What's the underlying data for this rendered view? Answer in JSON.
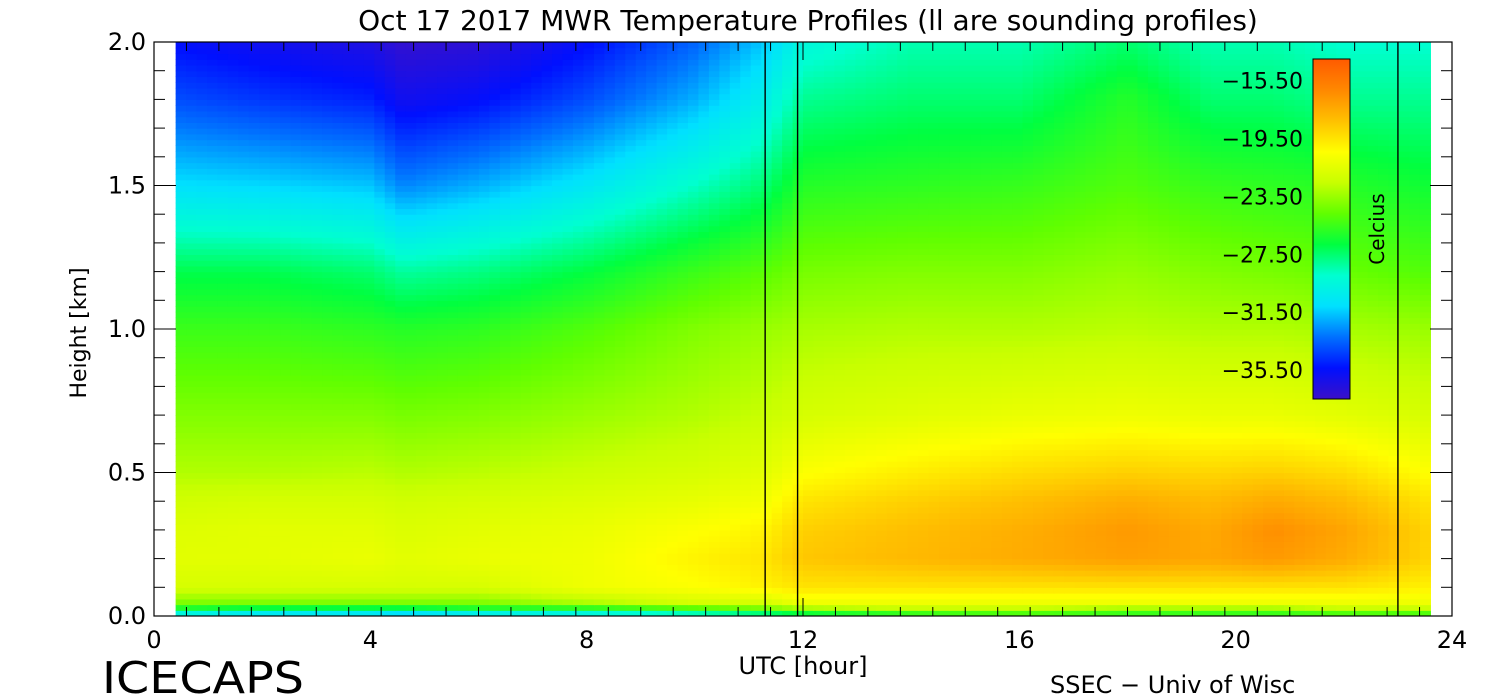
{
  "chart_data": {
    "type": "heatmap",
    "title": "Oct 17 2017 MWR Temperature Profiles (ll are sounding profiles)",
    "xlabel": "UTC [hour]",
    "ylabel": "Height [km]",
    "xlim": [
      0,
      24
    ],
    "ylim": [
      0,
      2.0
    ],
    "x_ticks": [
      0,
      4,
      8,
      12,
      16,
      20,
      24
    ],
    "x_tick_labels": [
      "0",
      "4",
      "8",
      "12",
      "16",
      "20",
      "24"
    ],
    "y_ticks": [
      0.0,
      0.5,
      1.0,
      1.5,
      2.0
    ],
    "y_tick_labels": [
      "0.0",
      "0.5",
      "1.0",
      "1.5",
      "2.0"
    ],
    "colorbar": {
      "label": "Celcius",
      "min": -37.5,
      "max": -14.0,
      "tick_values": [
        -15.5,
        -19.5,
        -23.5,
        -27.5,
        -31.5,
        -35.5
      ],
      "tick_labels": [
        "−15.50",
        "−19.50",
        "−23.50",
        "−27.50",
        "−31.50",
        "−35.50"
      ],
      "colormap": [
        "#3a10c8",
        "#0010ff",
        "#0070ff",
        "#00e0ff",
        "#00ffd0",
        "#00ff40",
        "#60ff00",
        "#c8ff00",
        "#ffff00",
        "#ffc000",
        "#ff8800",
        "#ff5a00"
      ]
    },
    "data_start_hour": 0.4,
    "data_end_hour": 23.6,
    "sounding_times_hour": [
      11.3,
      11.9,
      23.0
    ],
    "heights_km": [
      0.0,
      0.02,
      0.05,
      0.1,
      0.2,
      0.3,
      0.4,
      0.5,
      0.7,
      1.0,
      1.2,
      1.5,
      1.8,
      2.0
    ],
    "times_hour": [
      0.4,
      2,
      4,
      4.6,
      6,
      8,
      10,
      11.3,
      12,
      14,
      16,
      18,
      19.5,
      20.7,
      22,
      23.6
    ],
    "temperature_c": [
      [
        -32,
        -33,
        -33,
        -34,
        -33,
        -32,
        -31,
        -30,
        -29,
        -28,
        -27,
        -27,
        -27,
        -27,
        -27,
        -27
      ],
      [
        -27,
        -28,
        -28,
        -28,
        -27,
        -27,
        -26,
        -25,
        -24,
        -23,
        -23,
        -24,
        -24,
        -24,
        -23,
        -23
      ],
      [
        -24,
        -24,
        -24,
        -24,
        -24,
        -23,
        -22,
        -22,
        -21,
        -21,
        -21,
        -21,
        -21,
        -21,
        -21,
        -21
      ],
      [
        -22,
        -22,
        -22,
        -22,
        -22,
        -21,
        -20.5,
        -20,
        -19.5,
        -19.5,
        -19.5,
        -19.5,
        -19.5,
        -19.5,
        -19.5,
        -20
      ],
      [
        -21.5,
        -21.5,
        -21.2,
        -21.5,
        -21.2,
        -21,
        -20,
        -19.5,
        -18.5,
        -18,
        -17.5,
        -17,
        -17.3,
        -16.8,
        -17.5,
        -19
      ],
      [
        -21.7,
        -21.5,
        -21.5,
        -21.8,
        -21.5,
        -21.2,
        -20.5,
        -20,
        -18.8,
        -18.2,
        -17.6,
        -16.8,
        -17.4,
        -16.4,
        -17.2,
        -19
      ],
      [
        -22.2,
        -22,
        -22,
        -22.2,
        -22,
        -21.7,
        -21.3,
        -20.8,
        -19.5,
        -18.8,
        -18.2,
        -17.5,
        -18,
        -17.4,
        -18,
        -19.5
      ],
      [
        -23,
        -23,
        -22.8,
        -23,
        -22.8,
        -22.4,
        -22,
        -21.5,
        -20.5,
        -19.8,
        -19.2,
        -18.8,
        -19,
        -18.8,
        -19.2,
        -20.5
      ],
      [
        -24,
        -24,
        -24,
        -24.2,
        -24,
        -23.5,
        -23,
        -22.5,
        -22,
        -21.6,
        -21.2,
        -21,
        -21.2,
        -21.2,
        -21.5,
        -22
      ],
      [
        -25.5,
        -25.5,
        -25.8,
        -26,
        -25.8,
        -25,
        -24,
        -23.5,
        -23.2,
        -23,
        -23,
        -22.8,
        -23,
        -23,
        -23.2,
        -23.5
      ],
      [
        -27,
        -27,
        -27.5,
        -28.2,
        -27.8,
        -26.8,
        -25.5,
        -24.8,
        -24.2,
        -24,
        -24,
        -23.6,
        -24,
        -24.2,
        -24.5,
        -25
      ],
      [
        -31,
        -31.2,
        -31.6,
        -32.8,
        -32,
        -30.6,
        -28.8,
        -27.5,
        -26,
        -25.8,
        -25.6,
        -25,
        -25.6,
        -25.8,
        -26,
        -26.5
      ],
      [
        -34,
        -34.5,
        -35,
        -36,
        -35.5,
        -34,
        -32,
        -30,
        -28,
        -27.5,
        -27.5,
        -26,
        -27.5,
        -27.5,
        -28,
        -28
      ],
      [
        -35.5,
        -36,
        -36.5,
        -37.2,
        -37,
        -35.5,
        -33.5,
        -31.5,
        -29.5,
        -28.5,
        -28.5,
        -27.5,
        -28.5,
        -28.5,
        -29,
        -29
      ]
    ]
  },
  "footer": {
    "left_text": "ICECAPS",
    "right_text": "SSEC − Univ of Wisc"
  }
}
